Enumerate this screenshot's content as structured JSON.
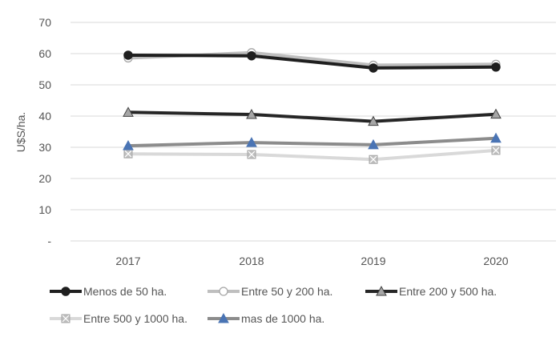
{
  "chart_data": {
    "type": "line",
    "title": "",
    "xlabel": "",
    "ylabel": "U$S/ha.",
    "categories": [
      "2017",
      "2018",
      "2019",
      "2020"
    ],
    "ylim": [
      0,
      70
    ],
    "yticks": [
      0,
      10,
      20,
      30,
      40,
      50,
      60,
      70
    ],
    "ytick_labels": [
      "-",
      "10",
      "20",
      "30",
      "40",
      "50",
      "60",
      "70"
    ],
    "grid": "horizontal",
    "legend_position": "bottom",
    "series": [
      {
        "name": "Menos de 50 ha.",
        "values": [
          59.5,
          59.3,
          55.4,
          55.7
        ],
        "color": "#1f1f1f",
        "marker": "filled-circle",
        "marker_fill": "#1f1f1f"
      },
      {
        "name": "Entre 50 y 200 ha.",
        "values": [
          58.6,
          60.3,
          56.3,
          56.6
        ],
        "color": "#bfbfbf",
        "marker": "open-circle",
        "marker_fill": "#ffffff"
      },
      {
        "name": "Entre 200 y 500 ha.",
        "values": [
          41.2,
          40.5,
          38.3,
          40.6
        ],
        "color": "#262626",
        "marker": "triangle",
        "marker_fill": "#a6a6a6"
      },
      {
        "name": "Entre 500 y 1000 ha.",
        "values": [
          27.9,
          27.7,
          26.1,
          29.0
        ],
        "color": "#d9d9d9",
        "marker": "x-square",
        "marker_fill": "#bfbfbf"
      },
      {
        "name": "mas de 1000 ha.",
        "values": [
          30.5,
          31.5,
          30.8,
          32.9
        ],
        "color": "#8c8c8c",
        "marker": "triangle",
        "marker_fill": "#4a74b4"
      }
    ]
  }
}
